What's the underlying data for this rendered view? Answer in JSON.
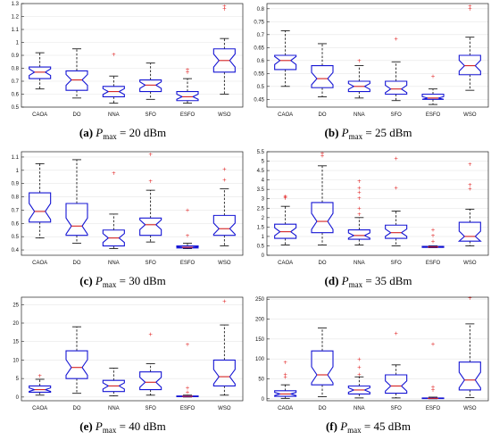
{
  "chart_data": [
    {
      "type": "box",
      "caption": {
        "label": "(a)",
        "var": "P",
        "sub": "max",
        "value": "= 20 dBm"
      },
      "categories": [
        "CAOA",
        "DO",
        "NNA",
        "SFO",
        "ESFO",
        "WSO"
      ],
      "ylim": [
        0.5,
        1.3
      ],
      "yticks": [
        "0.5",
        "0.6",
        "0.7",
        "0.8",
        "0.9",
        "1",
        "1.1",
        "1.2",
        "1.3"
      ],
      "boxes": [
        {
          "wl": 0.64,
          "q1": 0.72,
          "med": 0.77,
          "q3": 0.81,
          "wh": 0.92,
          "out": []
        },
        {
          "wl": 0.57,
          "q1": 0.63,
          "med": 0.71,
          "q3": 0.78,
          "wh": 0.95,
          "out": []
        },
        {
          "wl": 0.53,
          "q1": 0.58,
          "med": 0.62,
          "q3": 0.66,
          "wh": 0.74,
          "out": [
            0.91
          ]
        },
        {
          "wl": 0.56,
          "q1": 0.62,
          "med": 0.67,
          "q3": 0.71,
          "wh": 0.84,
          "out": []
        },
        {
          "wl": 0.53,
          "q1": 0.55,
          "med": 0.58,
          "q3": 0.62,
          "wh": 0.72,
          "out": [
            0.77,
            0.79
          ]
        },
        {
          "wl": 0.6,
          "q1": 0.77,
          "med": 0.86,
          "q3": 0.95,
          "wh": 1.03,
          "out": [
            1.26,
            1.28
          ]
        }
      ]
    },
    {
      "type": "box",
      "caption": {
        "label": "(b)",
        "var": "P",
        "sub": "max",
        "value": "= 25 dBm"
      },
      "categories": [
        "CAOA",
        "DO",
        "NNA",
        "SFO",
        "ESFO",
        "WSO"
      ],
      "ylim": [
        0.42,
        0.82
      ],
      "yticks": [
        "0.45",
        "0.5",
        "0.55",
        "0.6",
        "0.65",
        "0.7",
        "0.75",
        "0.8"
      ],
      "boxes": [
        {
          "wl": 0.5,
          "q1": 0.565,
          "med": 0.6,
          "q3": 0.62,
          "wh": 0.715,
          "out": []
        },
        {
          "wl": 0.46,
          "q1": 0.495,
          "med": 0.53,
          "q3": 0.58,
          "wh": 0.665,
          "out": []
        },
        {
          "wl": 0.455,
          "q1": 0.48,
          "med": 0.5,
          "q3": 0.52,
          "wh": 0.58,
          "out": [
            0.6
          ]
        },
        {
          "wl": 0.445,
          "q1": 0.47,
          "med": 0.49,
          "q3": 0.52,
          "wh": 0.595,
          "out": [
            0.685
          ]
        },
        {
          "wl": 0.43,
          "q1": 0.45,
          "med": 0.455,
          "q3": 0.47,
          "wh": 0.49,
          "out": [
            0.54
          ]
        },
        {
          "wl": 0.485,
          "q1": 0.545,
          "med": 0.58,
          "q3": 0.62,
          "wh": 0.69,
          "out": [
            0.8,
            0.81
          ]
        }
      ]
    },
    {
      "type": "box",
      "caption": {
        "label": "(c)",
        "var": "P",
        "sub": "max",
        "value": "= 30 dBm"
      },
      "categories": [
        "CAOA",
        "DO",
        "NNA",
        "SFO",
        "ESFO",
        "WSO"
      ],
      "ylim": [
        0.36,
        1.14
      ],
      "yticks": [
        "0.4",
        "0.5",
        "0.6",
        "0.7",
        "0.8",
        "0.9",
        "1",
        "1.1"
      ],
      "boxes": [
        {
          "wl": 0.49,
          "q1": 0.61,
          "med": 0.69,
          "q3": 0.83,
          "wh": 1.05,
          "out": []
        },
        {
          "wl": 0.45,
          "q1": 0.51,
          "med": 0.58,
          "q3": 0.75,
          "wh": 1.08,
          "out": []
        },
        {
          "wl": 0.41,
          "q1": 0.43,
          "med": 0.49,
          "q3": 0.55,
          "wh": 0.67,
          "out": [
            0.98
          ]
        },
        {
          "wl": 0.46,
          "q1": 0.51,
          "med": 0.59,
          "q3": 0.64,
          "wh": 0.85,
          "out": [
            0.92,
            1.12
          ]
        },
        {
          "wl": 0.41,
          "q1": 0.415,
          "med": 0.42,
          "q3": 0.43,
          "wh": 0.45,
          "out": [
            0.51,
            0.7
          ]
        },
        {
          "wl": 0.43,
          "q1": 0.51,
          "med": 0.56,
          "q3": 0.66,
          "wh": 0.86,
          "out": [
            0.93,
            1.01
          ]
        }
      ]
    },
    {
      "type": "box",
      "caption": {
        "label": "(d)",
        "var": "P",
        "sub": "max",
        "value": "= 35 dBm"
      },
      "categories": [
        "CAOA",
        "DO",
        "NNA",
        "SFO",
        "ESFO",
        "WSO"
      ],
      "ylim": [
        0,
        5.5
      ],
      "yticks": [
        "0",
        "0.5",
        "1",
        "1.5",
        "2",
        "2.5",
        "3",
        "3.5",
        "4",
        "4.5",
        "5",
        "5.5"
      ],
      "boxes": [
        {
          "wl": 0.55,
          "q1": 0.9,
          "med": 1.25,
          "q3": 1.65,
          "wh": 2.6,
          "out": [
            3.05,
            3.1,
            3.15
          ]
        },
        {
          "wl": 0.55,
          "q1": 1.2,
          "med": 1.8,
          "q3": 2.8,
          "wh": 4.75,
          "out": [
            5.3,
            5.45
          ]
        },
        {
          "wl": 0.55,
          "q1": 0.85,
          "med": 1.05,
          "q3": 1.35,
          "wh": 2.0,
          "out": [
            2.2,
            2.5,
            3.05,
            3.35,
            3.6,
            3.95
          ]
        },
        {
          "wl": 0.5,
          "q1": 0.9,
          "med": 1.2,
          "q3": 1.6,
          "wh": 2.35,
          "out": [
            3.6,
            5.15
          ]
        },
        {
          "wl": 0.4,
          "q1": 0.42,
          "med": 0.44,
          "q3": 0.47,
          "wh": 0.5,
          "out": [
            0.75,
            1.05,
            1.35
          ]
        },
        {
          "wl": 0.5,
          "q1": 0.75,
          "med": 1.0,
          "q3": 1.75,
          "wh": 2.45,
          "out": [
            3.55,
            3.75,
            4.85
          ]
        }
      ]
    },
    {
      "type": "box",
      "caption": {
        "label": "(e)",
        "var": "P",
        "sub": "max",
        "value": "= 40 dBm"
      },
      "categories": [
        "CAOA",
        "DO",
        "NNA",
        "SFO",
        "ESFO",
        "WSO"
      ],
      "ylim": [
        -1,
        27
      ],
      "yticks": [
        "0",
        "5",
        "10",
        "15",
        "20",
        "25"
      ],
      "boxes": [
        {
          "wl": 0.5,
          "q1": 1.3,
          "med": 2.0,
          "q3": 3.0,
          "wh": 4.8,
          "out": [
            5.8
          ]
        },
        {
          "wl": 1.0,
          "q1": 5.0,
          "med": 8.0,
          "q3": 12.5,
          "wh": 19.0,
          "out": []
        },
        {
          "wl": 0.3,
          "q1": 1.5,
          "med": 3.0,
          "q3": 4.5,
          "wh": 7.8,
          "out": []
        },
        {
          "wl": 0.5,
          "q1": 2.0,
          "med": 4.0,
          "q3": 6.8,
          "wh": 9.0,
          "out": [
            17.0
          ]
        },
        {
          "wl": 0.0,
          "q1": 0.1,
          "med": 0.2,
          "q3": 0.3,
          "wh": 0.5,
          "out": [
            1.3,
            2.6,
            14.3
          ]
        },
        {
          "wl": 0.5,
          "q1": 3.0,
          "med": 5.5,
          "q3": 10.0,
          "wh": 19.5,
          "out": [
            26.0
          ]
        }
      ]
    },
    {
      "type": "box",
      "caption": {
        "label": "(f)",
        "var": "P",
        "sub": "max",
        "value": "= 45 dBm"
      },
      "categories": [
        "CAOA",
        "DO",
        "NNA",
        "SFO",
        "ESFO",
        "WSO"
      ],
      "ylim": [
        -5,
        255
      ],
      "yticks": [
        "0",
        "50",
        "100",
        "150",
        "200",
        "250"
      ],
      "boxes": [
        {
          "wl": 1,
          "q1": 6,
          "med": 12,
          "q3": 20,
          "wh": 35,
          "out": [
            55,
            62,
            92
          ]
        },
        {
          "wl": 5,
          "q1": 35,
          "med": 60,
          "q3": 120,
          "wh": 178,
          "out": []
        },
        {
          "wl": 2,
          "q1": 12,
          "med": 22,
          "q3": 32,
          "wh": 55,
          "out": [
            62,
            80,
            100
          ]
        },
        {
          "wl": 2,
          "q1": 14,
          "med": 32,
          "q3": 60,
          "wh": 85,
          "out": [
            165
          ]
        },
        {
          "wl": 0,
          "q1": 0.5,
          "med": 1,
          "q3": 2,
          "wh": 4,
          "out": [
            22,
            30,
            138
          ]
        },
        {
          "wl": 3,
          "q1": 22,
          "med": 47,
          "q3": 92,
          "wh": 188,
          "out": [
            253
          ]
        }
      ]
    }
  ],
  "colors": {
    "box": "#1515d4",
    "median": "#d42020",
    "outlier": "#e02020",
    "whisker": "#000000",
    "axis": "#222222",
    "grid": "#e6e6e6"
  }
}
